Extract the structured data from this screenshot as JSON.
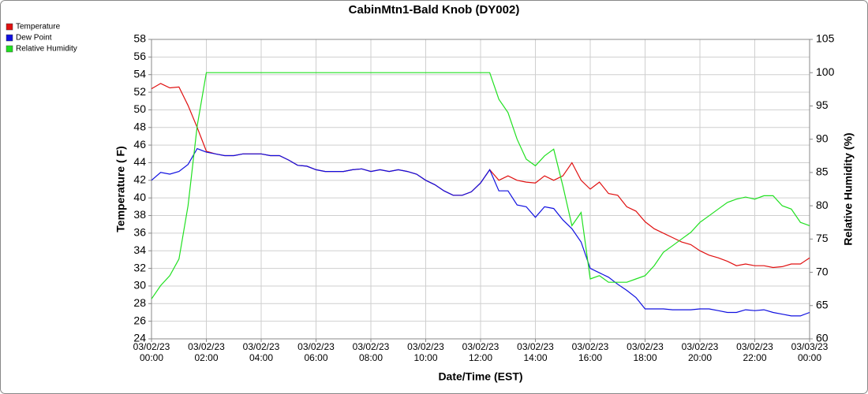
{
  "chart_data": {
    "type": "line",
    "title": "CabinMtn1-Bald Knob (DY002)",
    "x_label": "Date/Time (EST)",
    "y_label": "Temperature ( F)",
    "y2_label": "Relative Humidity (%)",
    "x": [
      "03/02/23 00:00",
      "03/02/23 00:20",
      "03/02/23 00:40",
      "03/02/23 01:00",
      "03/02/23 01:20",
      "03/02/23 01:40",
      "03/02/23 02:00",
      "03/02/23 02:20",
      "03/02/23 02:40",
      "03/02/23 03:00",
      "03/02/23 03:20",
      "03/02/23 03:40",
      "03/02/23 04:00",
      "03/02/23 04:20",
      "03/02/23 04:40",
      "03/02/23 05:00",
      "03/02/23 05:20",
      "03/02/23 05:40",
      "03/02/23 06:00",
      "03/02/23 06:20",
      "03/02/23 06:40",
      "03/02/23 07:00",
      "03/02/23 07:20",
      "03/02/23 07:40",
      "03/02/23 08:00",
      "03/02/23 08:20",
      "03/02/23 08:40",
      "03/02/23 09:00",
      "03/02/23 09:20",
      "03/02/23 09:40",
      "03/02/23 10:00",
      "03/02/23 10:20",
      "03/02/23 10:40",
      "03/02/23 11:00",
      "03/02/23 11:20",
      "03/02/23 11:40",
      "03/02/23 12:00",
      "03/02/23 12:20",
      "03/02/23 12:40",
      "03/02/23 13:00",
      "03/02/23 13:20",
      "03/02/23 13:40",
      "03/02/23 14:00",
      "03/02/23 14:20",
      "03/02/23 14:40",
      "03/02/23 15:00",
      "03/02/23 15:20",
      "03/02/23 15:40",
      "03/02/23 16:00",
      "03/02/23 16:20",
      "03/02/23 16:40",
      "03/02/23 17:00",
      "03/02/23 17:20",
      "03/02/23 17:40",
      "03/02/23 18:00",
      "03/02/23 18:20",
      "03/02/23 18:40",
      "03/02/23 19:00",
      "03/02/23 19:20",
      "03/02/23 19:40",
      "03/02/23 20:00",
      "03/02/23 20:20",
      "03/02/23 20:40",
      "03/02/23 21:00",
      "03/02/23 21:20",
      "03/02/23 21:40",
      "03/02/23 22:00",
      "03/02/23 22:20",
      "03/02/23 22:40",
      "03/02/23 23:00",
      "03/02/23 23:20",
      "03/02/23 23:40",
      "03/03/23 00:00"
    ],
    "series": [
      {
        "name": "Temperature",
        "color": "#e01010",
        "values": [
          52.4,
          53.0,
          52.5,
          52.6,
          50.5,
          48.0,
          45.3,
          45.0,
          44.8,
          44.8,
          45.0,
          45.0,
          45.0,
          44.8,
          44.8,
          44.3,
          43.7,
          43.6,
          43.2,
          43.0,
          43.0,
          43.0,
          43.2,
          43.3,
          43.0,
          43.2,
          43.0,
          43.2,
          43.0,
          42.7,
          42.0,
          41.5,
          40.8,
          40.3,
          40.3,
          40.7,
          41.7,
          43.2,
          42.0,
          42.5,
          42.0,
          41.8,
          41.7,
          42.5,
          42.0,
          42.5,
          44.0,
          42.0,
          41.0,
          41.8,
          40.5,
          40.3,
          39.0,
          38.5,
          37.3,
          36.5,
          36.0,
          35.5,
          35.0,
          34.7,
          34.0,
          33.5,
          33.2,
          32.8,
          32.3,
          32.5,
          32.3,
          32.3,
          32.1,
          32.2,
          32.5,
          32.5,
          33.2
        ]
      },
      {
        "name": "Dew Point",
        "color": "#1010e0",
        "values": [
          42.0,
          42.9,
          42.7,
          43.0,
          43.8,
          45.6,
          45.2,
          45.0,
          44.8,
          44.8,
          45.0,
          45.0,
          45.0,
          44.8,
          44.8,
          44.3,
          43.7,
          43.6,
          43.2,
          43.0,
          43.0,
          43.0,
          43.2,
          43.3,
          43.0,
          43.2,
          43.0,
          43.2,
          43.0,
          42.7,
          42.0,
          41.5,
          40.8,
          40.3,
          40.3,
          40.7,
          41.7,
          43.2,
          40.8,
          40.8,
          39.2,
          39.0,
          37.8,
          39.0,
          38.8,
          37.5,
          36.5,
          35.0,
          32.0,
          31.5,
          31.0,
          30.2,
          29.5,
          28.7,
          27.4,
          27.4,
          27.4,
          27.3,
          27.3,
          27.3,
          27.4,
          27.4,
          27.2,
          27.0,
          27.0,
          27.3,
          27.2,
          27.3,
          27.0,
          26.8,
          26.6,
          26.6,
          27.0
        ]
      },
      {
        "name": "Relative Humidity",
        "color": "#20e020",
        "axis": "y2",
        "values": [
          66,
          68,
          69.5,
          72,
          80,
          92,
          100,
          100,
          100,
          100,
          100,
          100,
          100,
          100,
          100,
          100,
          100,
          100,
          100,
          100,
          100,
          100,
          100,
          100,
          100,
          100,
          100,
          100,
          100,
          100,
          100,
          100,
          100,
          100,
          100,
          100,
          100,
          100,
          96,
          94,
          90,
          87,
          86,
          87.5,
          88.5,
          83,
          77,
          79,
          69,
          69.5,
          68.5,
          68.5,
          68.5,
          69,
          69.5,
          71,
          73,
          74,
          75,
          76,
          77.5,
          78.5,
          79.5,
          80.5,
          81,
          81.3,
          81,
          81.5,
          81.5,
          80,
          79.5,
          77.5,
          77
        ]
      }
    ],
    "xlim": [
      "03/02/23 00:00",
      "03/03/23 00:00"
    ],
    "xticks": [
      "03/02/23 00:00",
      "03/02/23 02:00",
      "03/02/23 04:00",
      "03/02/23 06:00",
      "03/02/23 08:00",
      "03/02/23 10:00",
      "03/02/23 12:00",
      "03/02/23 14:00",
      "03/02/23 16:00",
      "03/02/23 18:00",
      "03/02/23 20:00",
      "03/02/23 22:00",
      "03/03/23 00:00"
    ],
    "ylim": [
      24,
      58
    ],
    "yticks": [
      24,
      26,
      28,
      30,
      32,
      34,
      36,
      38,
      40,
      42,
      44,
      46,
      48,
      50,
      52,
      54,
      56,
      58
    ],
    "y2lim": [
      60,
      105
    ],
    "y2ticks": [
      60,
      65,
      70,
      75,
      80,
      85,
      90,
      95,
      100,
      105
    ],
    "grid": true,
    "legend": "top-left"
  }
}
